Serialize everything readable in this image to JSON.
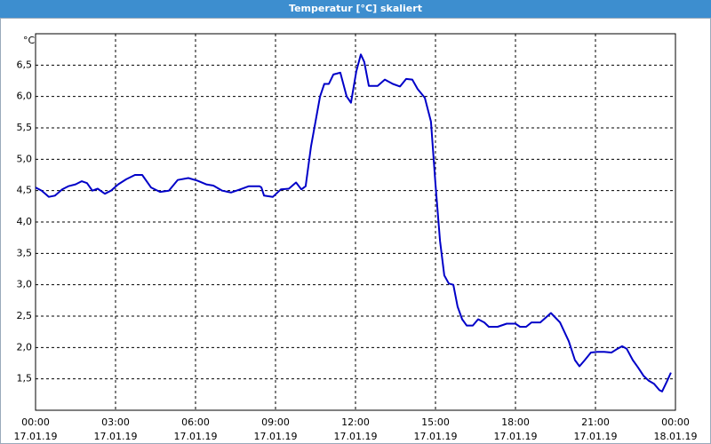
{
  "chart_data": {
    "type": "line",
    "title": "Temperatur [°C] skaliert",
    "y_unit": "°C",
    "xlim": [
      0,
      24
    ],
    "ylim": [
      1.0,
      7.0
    ],
    "xticks": [
      {
        "value": 0,
        "label": "00:00",
        "date": "17.01.19"
      },
      {
        "value": 3,
        "label": "03:00",
        "date": "17.01.19"
      },
      {
        "value": 6,
        "label": "06:00",
        "date": "17.01.19"
      },
      {
        "value": 9,
        "label": "09:00",
        "date": "17.01.19"
      },
      {
        "value": 12,
        "label": "12:00",
        "date": "17.01.19"
      },
      {
        "value": 15,
        "label": "15:00",
        "date": "17.01.19"
      },
      {
        "value": 18,
        "label": "18:00",
        "date": "17.01.19"
      },
      {
        "value": 21,
        "label": "21:00",
        "date": "17.01.19"
      },
      {
        "value": 24,
        "label": "00:00",
        "date": "18.01.19"
      }
    ],
    "yticks": [
      {
        "value": 1.5,
        "label": "1,5"
      },
      {
        "value": 2.0,
        "label": "2,0"
      },
      {
        "value": 2.5,
        "label": "2,5"
      },
      {
        "value": 3.0,
        "label": "3,0"
      },
      {
        "value": 3.5,
        "label": "3,5"
      },
      {
        "value": 4.0,
        "label": "4,0"
      },
      {
        "value": 4.5,
        "label": "4,5"
      },
      {
        "value": 5.0,
        "label": "5,0"
      },
      {
        "value": 5.5,
        "label": "5,5"
      },
      {
        "value": 6.0,
        "label": "6,0"
      },
      {
        "value": 6.5,
        "label": "6,5"
      }
    ],
    "grid": true,
    "series": [
      {
        "color": "#0000c8",
        "x": [
          0,
          0.23,
          0.5,
          0.73,
          1,
          1.23,
          1.5,
          1.73,
          1.93,
          2.13,
          2.33,
          2.6,
          2.83,
          3.1,
          3.4,
          3.73,
          4,
          4.33,
          4.67,
          5,
          5.33,
          5.73,
          6.07,
          6.4,
          6.67,
          7,
          7.33,
          7.67,
          8,
          8.4,
          8.47,
          8.57,
          8.9,
          9.2,
          9.5,
          9.77,
          9.97,
          10.13,
          10.33,
          10.5,
          10.67,
          10.83,
          11,
          11.17,
          11.43,
          11.67,
          11.83,
          12.03,
          12.2,
          12.33,
          12.5,
          12.83,
          13.1,
          13.4,
          13.67,
          13.9,
          14.13,
          14.33,
          14.6,
          14.83,
          15,
          15.17,
          15.33,
          15.5,
          15.67,
          15.83,
          16,
          16.17,
          16.4,
          16.6,
          16.83,
          17,
          17.33,
          17.67,
          18,
          18.17,
          18.4,
          18.6,
          18.93,
          19.33,
          19.67,
          20,
          20.23,
          20.4,
          20.6,
          20.83,
          21.07,
          21.33,
          21.6,
          21.83,
          22,
          22.17,
          22.4,
          22.6,
          22.8,
          23,
          23.2,
          23.4,
          23.5,
          23.67,
          23.83
        ],
        "values": [
          4.55,
          4.5,
          4.4,
          4.42,
          4.52,
          4.57,
          4.6,
          4.65,
          4.62,
          4.5,
          4.53,
          4.45,
          4.5,
          4.6,
          4.68,
          4.75,
          4.75,
          4.55,
          4.48,
          4.5,
          4.67,
          4.7,
          4.66,
          4.6,
          4.58,
          4.5,
          4.47,
          4.52,
          4.57,
          4.57,
          4.55,
          4.42,
          4.4,
          4.52,
          4.53,
          4.63,
          4.52,
          4.57,
          5.2,
          5.6,
          6.0,
          6.2,
          6.2,
          6.35,
          6.38,
          6.0,
          5.9,
          6.4,
          6.67,
          6.55,
          6.17,
          6.17,
          6.27,
          6.2,
          6.16,
          6.28,
          6.27,
          6.12,
          5.98,
          5.6,
          4.6,
          3.7,
          3.15,
          3.02,
          3.0,
          2.65,
          2.45,
          2.35,
          2.35,
          2.45,
          2.4,
          2.33,
          2.33,
          2.38,
          2.38,
          2.33,
          2.33,
          2.4,
          2.4,
          2.55,
          2.4,
          2.1,
          1.8,
          1.7,
          1.8,
          1.92,
          1.93,
          1.93,
          1.92,
          1.98,
          2.02,
          1.98,
          1.8,
          1.68,
          1.55,
          1.47,
          1.42,
          1.32,
          1.3,
          1.45,
          1.6
        ]
      }
    ]
  }
}
